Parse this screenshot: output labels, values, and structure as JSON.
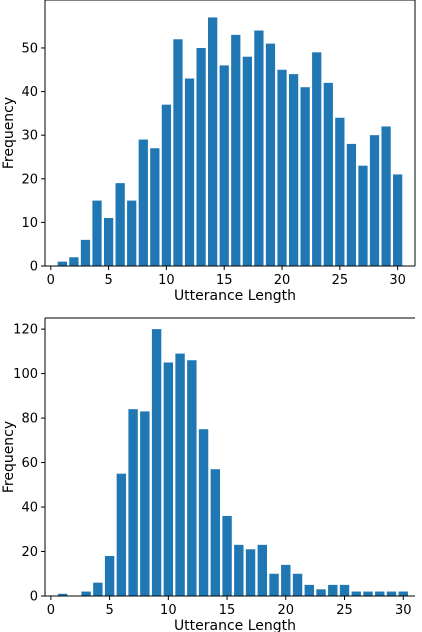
{
  "chart_data": [
    {
      "type": "bar",
      "xlabel": "Utterance Length",
      "ylabel": "Frequency",
      "xlim": [
        -0.5,
        31.5
      ],
      "ylim": [
        0,
        61
      ],
      "xticks": [
        0,
        5,
        10,
        15,
        20,
        25,
        30
      ],
      "yticks": [
        0,
        10,
        20,
        30,
        40,
        50
      ],
      "x": [
        1,
        2,
        3,
        4,
        5,
        6,
        7,
        8,
        9,
        10,
        11,
        12,
        13,
        14,
        15,
        16,
        17,
        18,
        19,
        20,
        21,
        22,
        23,
        24,
        25,
        26,
        27,
        28,
        29,
        30
      ],
      "values": [
        1,
        2,
        6,
        15,
        11,
        19,
        15,
        29,
        27,
        37,
        52,
        43,
        50,
        57,
        46,
        53,
        48,
        54,
        51,
        45,
        44,
        41,
        49,
        42,
        34,
        28,
        23,
        30,
        32,
        21
      ],
      "bar_color": "#1f77b4"
    },
    {
      "type": "bar",
      "xlabel": "Utterance Length",
      "ylabel": "Frequency",
      "xlim": [
        -0.5,
        31
      ],
      "ylim": [
        0,
        125
      ],
      "xticks": [
        0,
        5,
        10,
        15,
        20,
        25,
        30
      ],
      "yticks": [
        0,
        20,
        40,
        60,
        80,
        100,
        120
      ],
      "x": [
        1,
        2,
        3,
        4,
        5,
        6,
        7,
        8,
        9,
        10,
        11,
        12,
        13,
        14,
        15,
        16,
        17,
        18,
        19,
        20,
        21,
        22,
        23,
        24,
        25,
        26,
        27,
        28,
        29,
        30
      ],
      "values": [
        1,
        0,
        2,
        6,
        18,
        55,
        84,
        83,
        120,
        105,
        109,
        106,
        75,
        57,
        36,
        23,
        21,
        23,
        10,
        14,
        10,
        5,
        3,
        5,
        5,
        2,
        2,
        2,
        2,
        2
      ],
      "bar_color": "#1f77b4"
    }
  ]
}
